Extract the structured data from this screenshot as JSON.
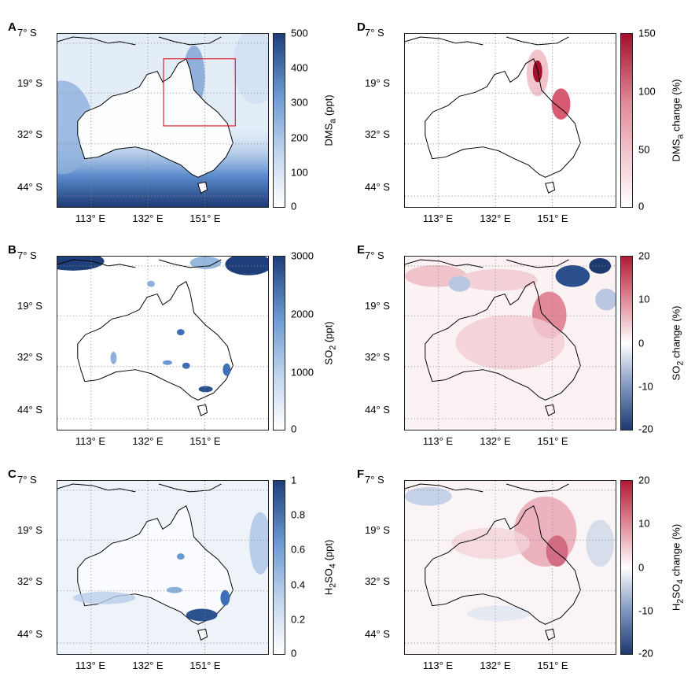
{
  "grid_labels": {
    "lat": [
      "7° S",
      "19° S",
      "32° S",
      "44° S"
    ],
    "lon": [
      "113° E",
      "132° E",
      "151° E"
    ]
  },
  "panels": [
    {
      "id": "A",
      "letter": "A",
      "field": "DMS_a",
      "units_label": "DMS_a (ppt)",
      "label_main": "DMS",
      "label_sub": "a",
      "label_rest": " (ppt)",
      "colormap": "blues",
      "ticks": [
        "500",
        "400",
        "300",
        "200",
        "100",
        "0"
      ],
      "range": [
        0,
        500
      ],
      "annotation": "highlight box over northeast Queensland"
    },
    {
      "id": "B",
      "letter": "B",
      "field": "SO2",
      "units_label": "SO2 (ppt)",
      "label_main": "SO",
      "label_sub": "2",
      "label_rest": " (ppt)",
      "colormap": "blues",
      "ticks": [
        "3000",
        "2000",
        "1000",
        "0"
      ],
      "range": [
        0,
        3000
      ]
    },
    {
      "id": "C",
      "letter": "C",
      "field": "H2SO4",
      "units_label": "H2SO4 (ppt)",
      "label_main": "H",
      "label_sub": "2",
      "label_mid": "SO",
      "label_sub2": "4",
      "label_rest": " (ppt)",
      "colormap": "blues",
      "ticks": [
        "1",
        "0.8",
        "0.6",
        "0.4",
        "0.2",
        "0"
      ],
      "range": [
        0,
        1
      ]
    },
    {
      "id": "D",
      "letter": "D",
      "field": "DMS_a change",
      "units_label": "DMS_a change (%)",
      "label_main": "DMS",
      "label_sub": "a",
      "label_rest": " change (%)",
      "colormap": "reds",
      "ticks": [
        "150",
        "100",
        "50",
        "0"
      ],
      "range": [
        0,
        150
      ]
    },
    {
      "id": "E",
      "letter": "E",
      "field": "SO2 change",
      "units_label": "SO2 change (%)",
      "label_main": "SO",
      "label_sub": "2",
      "label_rest": " change (%)",
      "colormap": "diverging",
      "ticks": [
        "20",
        "10",
        "0",
        "-10",
        "-20"
      ],
      "range": [
        -20,
        20
      ]
    },
    {
      "id": "F",
      "letter": "F",
      "field": "H2SO4 change",
      "units_label": "H2SO4 change (%)",
      "label_main": "H",
      "label_sub": "2",
      "label_mid": "SO",
      "label_sub2": "4",
      "label_rest": " change (%)",
      "colormap": "diverging",
      "ticks": [
        "20",
        "10",
        "0",
        "-10",
        "-20"
      ],
      "range": [
        -20,
        20
      ]
    }
  ],
  "colors": {
    "blues_max": "#1f3f7a",
    "blues_mid": "#6a98d0",
    "blues_min": "#ffffff",
    "reds_max": "#a3102e",
    "reds_mid": "#e08a98",
    "div_max": "#b01a35",
    "div_min": "#1d3a6e",
    "highlight_box": "#e0202a",
    "coastline": "#000000"
  }
}
